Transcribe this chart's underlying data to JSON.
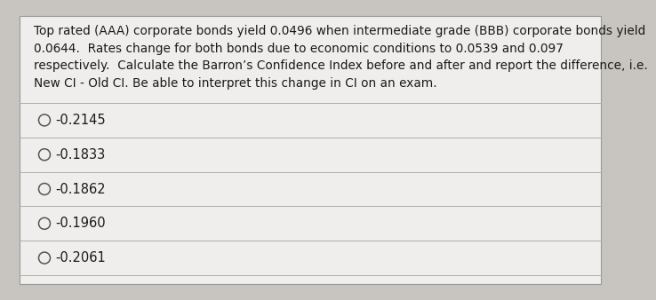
{
  "question_text": "Top rated (AAA) corporate bonds yield 0.0496 when intermediate grade (BBB) corporate bonds yield\n0.0644.  Rates change for both bonds due to economic conditions to 0.0539 and 0.097\nrespectively.  Calculate the Barron’s Confidence Index before and after and report the difference, i.e.\nNew CI - Old CI. Be able to interpret this change in CI on an exam.",
  "options": [
    "-0.2145",
    "-0.1833",
    "-0.1862",
    "-0.1960",
    "-0.2061"
  ],
  "bg_color": "#c8c4c0",
  "box_color": "#f0eeec",
  "box_inner_color": "#eae8e4",
  "text_color": "#1a1a1a",
  "line_color": "#b0aca8",
  "question_fontsize": 9.8,
  "option_fontsize": 10.5,
  "border_color": "#999999"
}
